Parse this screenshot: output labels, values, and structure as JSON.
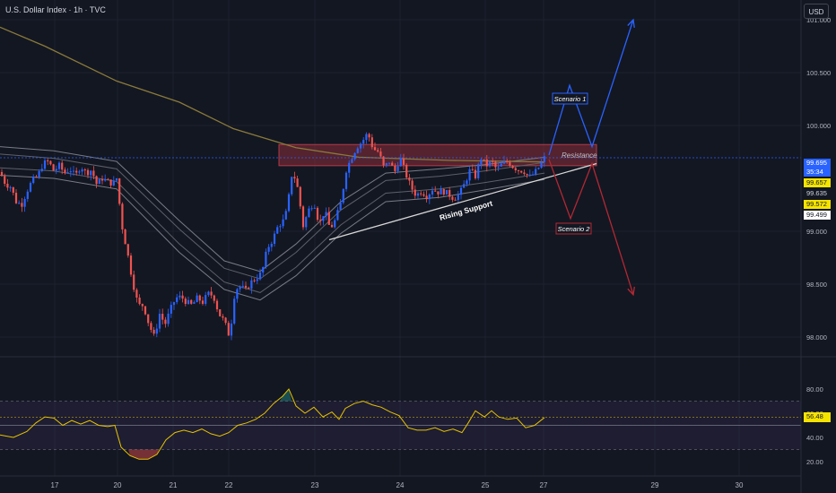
{
  "title": "U.S. Dollar Index · 1h · TVC",
  "currency_button": "USD",
  "colors": {
    "background": "#131722",
    "bull": "#2962ff",
    "bear": "#ef5350",
    "ma_gold": "#8a7a3a",
    "rsi_line": "#e6c200",
    "scenario1": "#2962ff",
    "scenario2": "#b22833"
  },
  "price_labels": [
    {
      "text": "99.695",
      "sub": "35:34",
      "bg": "#2962ff",
      "fg": "#ffffff"
    },
    {
      "text": "99.657",
      "bg": "#f5e400",
      "fg": "#131722"
    },
    {
      "text": "99.635",
      "bg": "#131722",
      "fg": "#d1d4dc"
    },
    {
      "text": "99.572",
      "bg": "#f5e400",
      "fg": "#131722"
    },
    {
      "text": "99.499",
      "bg": "#ffffff",
      "fg": "#131722"
    }
  ],
  "rsi_label": "56.48",
  "chart_data": [
    {
      "type": "candlestick",
      "name": "price",
      "ylim": [
        97.75,
        101.3
      ],
      "y_ticks": [
        "101.000",
        "100.500",
        "100.000",
        "99.000",
        "98.500",
        "98.000"
      ],
      "x_ticks": [
        "17",
        "20",
        "21",
        "22",
        "23",
        "24",
        "25",
        "27",
        "29",
        "30"
      ],
      "close_path": [
        [
          0,
          99.56
        ],
        [
          6,
          99.45
        ],
        [
          12,
          99.42
        ],
        [
          18,
          99.28
        ],
        [
          24,
          99.25
        ],
        [
          30,
          99.38
        ],
        [
          36,
          99.48
        ],
        [
          42,
          99.52
        ],
        [
          48,
          99.64
        ],
        [
          54,
          99.66
        ],
        [
          60,
          99.57
        ],
        [
          66,
          99.62
        ],
        [
          72,
          99.55
        ],
        [
          78,
          99.59
        ],
        [
          84,
          99.52
        ],
        [
          90,
          99.62
        ],
        [
          96,
          99.55
        ],
        [
          102,
          99.58
        ],
        [
          108,
          99.44
        ],
        [
          114,
          99.5
        ],
        [
          120,
          99.47
        ],
        [
          126,
          99.45
        ],
        [
          130,
          99.5
        ],
        [
          136,
          99.05
        ],
        [
          142,
          98.8
        ],
        [
          148,
          98.52
        ],
        [
          154,
          98.3
        ],
        [
          160,
          98.3
        ],
        [
          166,
          98.12
        ],
        [
          172,
          98.0
        ],
        [
          178,
          98.22
        ],
        [
          184,
          98.12
        ],
        [
          190,
          98.26
        ],
        [
          196,
          98.37
        ],
        [
          202,
          98.38
        ],
        [
          208,
          98.33
        ],
        [
          214,
          98.3
        ],
        [
          220,
          98.37
        ],
        [
          226,
          98.33
        ],
        [
          232,
          98.41
        ],
        [
          238,
          98.39
        ],
        [
          244,
          98.22
        ],
        [
          250,
          98.15
        ],
        [
          256,
          98.0
        ],
        [
          262,
          98.45
        ],
        [
          268,
          98.48
        ],
        [
          274,
          98.44
        ],
        [
          280,
          98.52
        ],
        [
          286,
          98.56
        ],
        [
          292,
          98.61
        ],
        [
          298,
          98.84
        ],
        [
          304,
          98.92
        ],
        [
          310,
          99.05
        ],
        [
          316,
          99.1
        ],
        [
          320,
          99.2
        ],
        [
          326,
          99.58
        ],
        [
          332,
          99.4
        ],
        [
          338,
          99.05
        ],
        [
          344,
          99.2
        ],
        [
          350,
          99.28
        ],
        [
          356,
          99.06
        ],
        [
          362,
          99.2
        ],
        [
          368,
          99.02
        ],
        [
          374,
          99.11
        ],
        [
          380,
          99.27
        ],
        [
          386,
          99.58
        ],
        [
          392,
          99.7
        ],
        [
          398,
          99.8
        ],
        [
          404,
          99.85
        ],
        [
          410,
          99.93
        ],
        [
          416,
          99.78
        ],
        [
          422,
          99.75
        ],
        [
          428,
          99.6
        ],
        [
          434,
          99.66
        ],
        [
          440,
          99.56
        ],
        [
          446,
          99.7
        ],
        [
          452,
          99.55
        ],
        [
          458,
          99.42
        ],
        [
          464,
          99.34
        ],
        [
          470,
          99.38
        ],
        [
          476,
          99.33
        ],
        [
          482,
          99.4
        ],
        [
          488,
          99.37
        ],
        [
          494,
          99.38
        ],
        [
          500,
          99.35
        ],
        [
          506,
          99.31
        ],
        [
          512,
          99.35
        ],
        [
          518,
          99.45
        ],
        [
          524,
          99.58
        ],
        [
          530,
          99.52
        ],
        [
          536,
          99.7
        ],
        [
          542,
          99.62
        ],
        [
          548,
          99.66
        ],
        [
          554,
          99.58
        ],
        [
          560,
          99.64
        ],
        [
          566,
          99.66
        ],
        [
          572,
          99.61
        ],
        [
          578,
          99.58
        ],
        [
          584,
          99.57
        ],
        [
          590,
          99.51
        ],
        [
          596,
          99.55
        ],
        [
          602,
          99.62
        ],
        [
          607,
          99.695
        ]
      ],
      "series": [
        {
          "name": "",
          "kind": "moving-average",
          "color": "#8a7a3a",
          "points": [
            [
              0,
              100.93
            ],
            [
              50,
              100.75
            ],
            [
              130,
              100.42
            ],
            [
              200,
              100.22
            ],
            [
              260,
              99.97
            ],
            [
              330,
              99.79
            ],
            [
              400,
              99.7
            ],
            [
              500,
              99.67
            ],
            [
              607,
              99.655
            ]
          ]
        },
        {
          "name": "",
          "kind": "band-upper-outer",
          "color": "#787b86",
          "points": [
            [
              0,
              99.8
            ],
            [
              60,
              99.76
            ],
            [
              130,
              99.66
            ],
            [
              200,
              99.1
            ],
            [
              250,
              98.72
            ],
            [
              290,
              98.62
            ],
            [
              330,
              98.88
            ],
            [
              380,
              99.28
            ],
            [
              430,
              99.55
            ],
            [
              490,
              99.59
            ],
            [
              540,
              99.63
            ],
            [
              607,
              99.7
            ]
          ]
        },
        {
          "name": "",
          "kind": "band-upper-inner",
          "color": "#5d606b",
          "points": [
            [
              0,
              99.73
            ],
            [
              60,
              99.69
            ],
            [
              130,
              99.59
            ],
            [
              200,
              99.02
            ],
            [
              250,
              98.65
            ],
            [
              290,
              98.55
            ],
            [
              330,
              98.8
            ],
            [
              380,
              99.2
            ],
            [
              430,
              99.48
            ],
            [
              490,
              99.52
            ],
            [
              540,
              99.57
            ],
            [
              607,
              99.65
            ]
          ]
        },
        {
          "name": "",
          "kind": "band-lower-inner",
          "color": "#5d606b",
          "points": [
            [
              0,
              99.6
            ],
            [
              60,
              99.57
            ],
            [
              130,
              99.47
            ],
            [
              200,
              98.88
            ],
            [
              250,
              98.52
            ],
            [
              290,
              98.42
            ],
            [
              330,
              98.66
            ],
            [
              380,
              99.06
            ],
            [
              430,
              99.36
            ],
            [
              490,
              99.4
            ],
            [
              540,
              99.46
            ],
            [
              607,
              99.55
            ]
          ]
        },
        {
          "name": "",
          "kind": "band-lower-outer",
          "color": "#787b86",
          "points": [
            [
              0,
              99.53
            ],
            [
              60,
              99.5
            ],
            [
              130,
              99.4
            ],
            [
              200,
              98.8
            ],
            [
              250,
              98.45
            ],
            [
              290,
              98.35
            ],
            [
              330,
              98.58
            ],
            [
              380,
              98.98
            ],
            [
              430,
              99.28
            ],
            [
              490,
              99.32
            ],
            [
              540,
              99.39
            ],
            [
              607,
              99.49
            ]
          ]
        }
      ],
      "annotations": {
        "resistance": {
          "label": "Resistance",
          "y_low": 99.62,
          "y_high": 99.82,
          "x_start": 311,
          "x_end": 665
        },
        "rising_support": {
          "label": "Rising Support",
          "from": [
            367,
            98.92
          ],
          "to": [
            665,
            99.64
          ]
        },
        "scenario1": {
          "label": "Scenario 1",
          "path": [
            [
              612,
              99.72
            ],
            [
              635,
              100.38
            ],
            [
              660,
              99.8
            ],
            [
              706,
              101.0
            ]
          ]
        },
        "scenario2": {
          "label": "Scenario 2",
          "path": [
            [
              612,
              99.68
            ],
            [
              636,
              99.12
            ],
            [
              660,
              99.64
            ],
            [
              706,
              98.4
            ]
          ]
        }
      }
    },
    {
      "type": "line",
      "name": "RSI",
      "ylim": [
        10,
        90
      ],
      "y_ticks": [
        "80.00",
        "60.00",
        "40.00",
        "20.00"
      ],
      "levels": [
        70,
        50,
        30
      ],
      "points": [
        [
          0,
          42
        ],
        [
          15,
          40
        ],
        [
          30,
          45
        ],
        [
          40,
          52
        ],
        [
          50,
          57
        ],
        [
          60,
          56
        ],
        [
          70,
          50
        ],
        [
          80,
          54
        ],
        [
          90,
          51
        ],
        [
          100,
          54
        ],
        [
          110,
          50
        ],
        [
          120,
          49
        ],
        [
          128,
          50
        ],
        [
          135,
          32
        ],
        [
          145,
          25
        ],
        [
          155,
          22
        ],
        [
          165,
          22
        ],
        [
          175,
          26
        ],
        [
          185,
          38
        ],
        [
          195,
          44
        ],
        [
          205,
          46
        ],
        [
          215,
          44
        ],
        [
          225,
          47
        ],
        [
          235,
          43
        ],
        [
          245,
          41
        ],
        [
          255,
          44
        ],
        [
          265,
          50
        ],
        [
          275,
          52
        ],
        [
          285,
          55
        ],
        [
          295,
          60
        ],
        [
          305,
          68
        ],
        [
          315,
          74
        ],
        [
          322,
          80
        ],
        [
          330,
          66
        ],
        [
          340,
          60
        ],
        [
          350,
          65
        ],
        [
          360,
          57
        ],
        [
          370,
          61
        ],
        [
          378,
          55
        ],
        [
          385,
          64
        ],
        [
          395,
          68
        ],
        [
          405,
          70
        ],
        [
          415,
          67
        ],
        [
          425,
          65
        ],
        [
          435,
          61
        ],
        [
          445,
          58
        ],
        [
          455,
          48
        ],
        [
          465,
          46
        ],
        [
          475,
          46
        ],
        [
          485,
          48
        ],
        [
          495,
          45
        ],
        [
          505,
          47
        ],
        [
          515,
          44
        ],
        [
          522,
          52
        ],
        [
          530,
          62
        ],
        [
          540,
          57
        ],
        [
          548,
          62
        ],
        [
          556,
          57
        ],
        [
          566,
          55
        ],
        [
          576,
          56
        ],
        [
          586,
          48
        ],
        [
          596,
          50
        ],
        [
          607,
          56.48
        ]
      ]
    }
  ]
}
